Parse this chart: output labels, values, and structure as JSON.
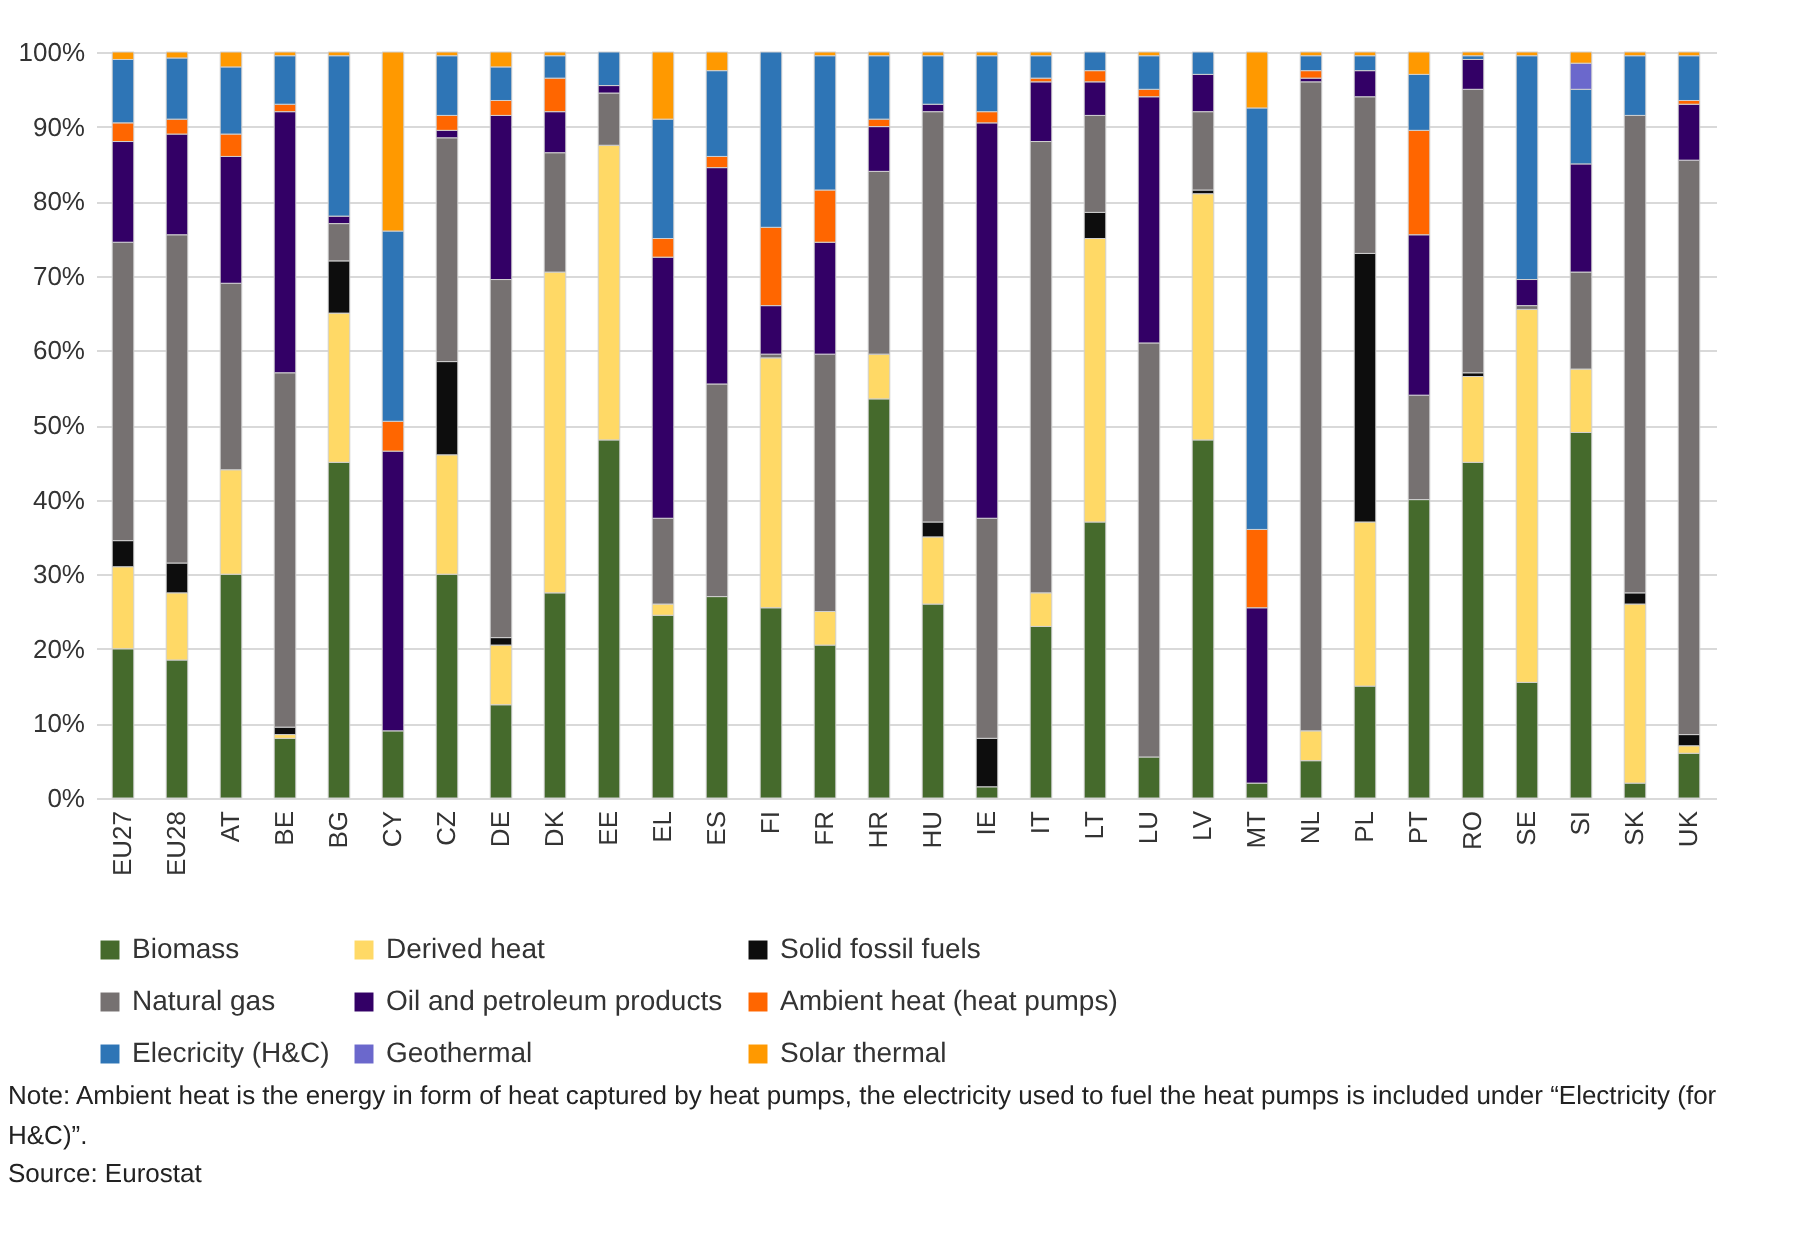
{
  "chart_data": {
    "type": "bar",
    "stacked": true,
    "categories": [
      "EU27",
      "EU28",
      "AT",
      "BE",
      "BG",
      "CY",
      "CZ",
      "DE",
      "DK",
      "EE",
      "EL",
      "ES",
      "FI",
      "FR",
      "HR",
      "HU",
      "IE",
      "IT",
      "LT",
      "LU",
      "LV",
      "MT",
      "NL",
      "PL",
      "PT",
      "RO",
      "SE",
      "SI",
      "SK",
      "UK"
    ],
    "series": [
      {
        "name": "Biomass",
        "color": "#456a2c",
        "values": [
          20,
          18.5,
          30,
          8,
          45,
          9,
          30,
          12.5,
          27.5,
          48,
          24.5,
          27,
          25.5,
          20.5,
          53.5,
          26,
          1.5,
          23,
          37,
          5.5,
          48,
          2,
          5,
          15,
          40,
          45,
          15.5,
          49,
          2,
          6
        ]
      },
      {
        "name": "Derived heat",
        "color": "#ffd966",
        "values": [
          11,
          9,
          14,
          0.5,
          20,
          null,
          16,
          8,
          43,
          39.5,
          1.5,
          null,
          33.5,
          4.5,
          6,
          9,
          null,
          4.5,
          38,
          null,
          33,
          null,
          4,
          22,
          null,
          11.5,
          50,
          8.5,
          24,
          1
        ]
      },
      {
        "name": "Solid fossil fuels",
        "color": "#0d0d0d",
        "values": [
          3.5,
          4,
          null,
          1,
          7,
          null,
          12.5,
          1,
          null,
          null,
          null,
          null,
          null,
          null,
          null,
          2,
          6.5,
          null,
          3.5,
          null,
          0.5,
          null,
          null,
          36,
          null,
          0.5,
          null,
          null,
          1.5,
          1.5
        ]
      },
      {
        "name": "Natural gas",
        "color": "#767171",
        "values": [
          40,
          44,
          25,
          47.5,
          5,
          null,
          30,
          48,
          16,
          7,
          11.5,
          28.5,
          0.5,
          34.5,
          24.5,
          55,
          29.5,
          60.5,
          13,
          55.5,
          10.5,
          null,
          87,
          21,
          14,
          38,
          0.5,
          13,
          64,
          77
        ]
      },
      {
        "name": "Oil and petroleum products",
        "color": "#330066",
        "values": [
          13.5,
          13.5,
          17,
          35,
          1,
          37.5,
          1,
          22,
          5.5,
          1,
          35,
          29,
          6.5,
          15,
          6,
          1,
          53,
          8,
          4.5,
          33,
          5,
          23.5,
          0.5,
          3.5,
          21.5,
          4,
          3.5,
          14.5,
          null,
          7.5
        ]
      },
      {
        "name": "Ambient heat (heat pumps)",
        "color": "#ff6600",
        "values": [
          2.5,
          2,
          3,
          1,
          null,
          4,
          2,
          2,
          4.5,
          null,
          2.5,
          1.5,
          10.5,
          7,
          1,
          null,
          1.5,
          0.5,
          1.5,
          1,
          null,
          10.5,
          1,
          null,
          14,
          null,
          null,
          null,
          null,
          0.5
        ]
      },
      {
        "name": "Elecricity (H&C)",
        "color": "#2e75b6",
        "values": [
          8.5,
          8.2,
          9,
          6.5,
          21.5,
          25.5,
          8,
          4.5,
          3,
          4.5,
          16,
          11.5,
          23.5,
          18,
          8.5,
          6.5,
          7.5,
          3,
          2.5,
          4.5,
          3,
          56.5,
          2,
          2,
          7.5,
          0.5,
          30,
          10,
          8,
          6
        ]
      },
      {
        "name": "Geothermal",
        "color": "#6b68cc",
        "values": [
          null,
          null,
          null,
          null,
          null,
          null,
          null,
          null,
          null,
          null,
          null,
          null,
          null,
          null,
          null,
          null,
          null,
          null,
          null,
          null,
          null,
          null,
          null,
          null,
          null,
          null,
          null,
          3.5,
          null,
          null
        ]
      },
      {
        "name": "Solar thermal",
        "color": "#ff9900",
        "values": [
          1,
          0.8,
          2,
          0.5,
          0.5,
          24,
          0.5,
          2,
          0.5,
          null,
          9,
          2.5,
          null,
          0.5,
          0.5,
          0.5,
          0.5,
          0.5,
          null,
          0.5,
          null,
          7.5,
          0.5,
          0.5,
          3,
          0.5,
          0.5,
          1.5,
          0.5,
          0.5
        ]
      }
    ],
    "ylim": [
      0,
      100
    ],
    "yticks": [
      {
        "value": 0,
        "label": "0%"
      },
      {
        "value": 10,
        "label": "10%"
      },
      {
        "value": 20,
        "label": "20%"
      },
      {
        "value": 30,
        "label": "30%"
      },
      {
        "value": 40,
        "label": "40%"
      },
      {
        "value": 50,
        "label": "50%"
      },
      {
        "value": 60,
        "label": "60%"
      },
      {
        "value": 70,
        "label": "70%"
      },
      {
        "value": 80,
        "label": "80%"
      },
      {
        "value": 90,
        "label": "90%"
      },
      {
        "value": 100,
        "label": "100%"
      }
    ],
    "grid": "y",
    "legend": "bottom",
    "annotations": [
      "Note: Ambient heat is the energy in form of heat captured by heat pumps, the electricity used to fuel the heat pumps is included under “Electricity (for H&C)”.",
      "Source: Eurostat"
    ]
  }
}
